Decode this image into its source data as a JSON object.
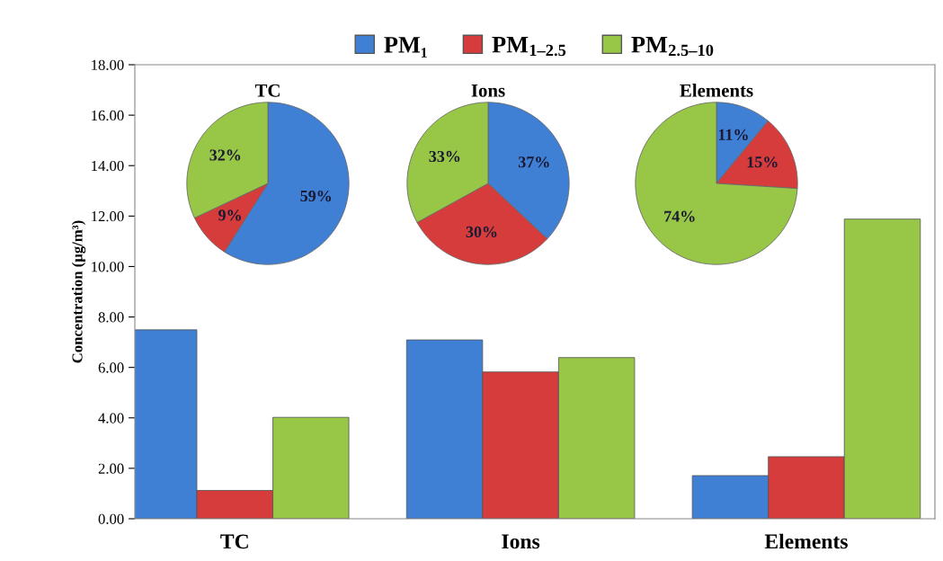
{
  "chart_data": [
    {
      "type": "bar",
      "categories": [
        "TC",
        "Ions",
        "Elements"
      ],
      "ylabel": "Concentration (µg/m³)",
      "ylim": [
        0,
        18
      ],
      "yticks": [
        {
          "value": 0,
          "label": "0.00"
        },
        {
          "value": 2,
          "label": "2.00"
        },
        {
          "value": 4,
          "label": "4.00"
        },
        {
          "value": 6,
          "label": "6.00"
        },
        {
          "value": 8,
          "label": "8.00"
        },
        {
          "value": 10,
          "label": "10.00"
        },
        {
          "value": 12,
          "label": "12.00"
        },
        {
          "value": 14,
          "label": "14.00"
        },
        {
          "value": 16,
          "label": "16.00"
        },
        {
          "value": 18,
          "label": "18.00"
        }
      ],
      "grid": false,
      "legend": "top",
      "series": [
        {
          "name": "PM₁",
          "color": "#3f7fd4",
          "values": [
            7.49,
            7.09,
            1.71
          ]
        },
        {
          "name": "PM$_{1–2.5}$",
          "color": "#d63c3c",
          "values": [
            1.12,
            5.82,
            2.46
          ]
        },
        {
          "name": "PM$_{2.5–10}$",
          "color": "#98c646",
          "values": [
            4.02,
            6.39,
            11.88
          ]
        }
      ]
    },
    {
      "type": "pie",
      "title": "TC",
      "categories": [
        null,
        null,
        null
      ],
      "values": [
        59,
        9,
        32
      ],
      "colors": [
        "#3f7fd4",
        "#d63c3c",
        "#98c646"
      ],
      "value_labels": [
        "59%",
        "9%",
        "32%"
      ]
    },
    {
      "type": "pie",
      "title": "Ions",
      "categories": [
        null,
        null,
        null
      ],
      "values": [
        37,
        30,
        33
      ],
      "colors": [
        "#3f7fd4",
        "#d63c3c",
        "#98c646"
      ],
      "value_labels": [
        "37%",
        "30%",
        "33%"
      ]
    },
    {
      "type": "pie",
      "title": "Elements",
      "categories": [
        null,
        null,
        null
      ],
      "values": [
        11,
        15,
        74
      ],
      "colors": [
        "#3f7fd4",
        "#d63c3c",
        "#98c646"
      ],
      "value_labels": [
        "11%",
        "15%",
        "74%"
      ]
    }
  ]
}
